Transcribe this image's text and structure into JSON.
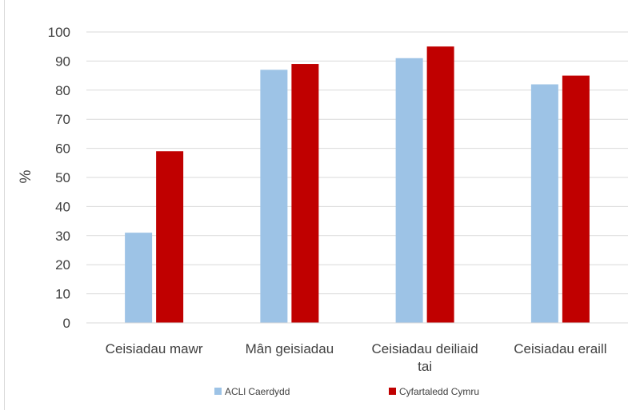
{
  "chart_data": {
    "type": "bar",
    "categories": [
      "Ceisiadau mawr",
      "Mân geisiadau",
      "Ceisiadau deiliaid tai",
      "Ceisiadau eraill"
    ],
    "category_lines": [
      [
        "Ceisiadau mawr"
      ],
      [
        "Mân geisiadau"
      ],
      [
        "Ceisiadau deiliaid",
        "tai"
      ],
      [
        "Ceisiadau eraill"
      ]
    ],
    "series": [
      {
        "name": "ACLl Caerdydd",
        "values": [
          31,
          87,
          91,
          82
        ],
        "color": "#9dc3e6"
      },
      {
        "name": "Cyfartaledd Cymru",
        "values": [
          59,
          89,
          95,
          85
        ],
        "color": "#c00000"
      }
    ],
    "ylabel": "%",
    "xlabel": "",
    "ylim": [
      0,
      100
    ],
    "yticks": [
      0,
      10,
      20,
      30,
      40,
      50,
      60,
      70,
      80,
      90,
      100
    ],
    "grid": true,
    "gridline_color": "#d9d9d9",
    "legend_position": "bottom"
  }
}
